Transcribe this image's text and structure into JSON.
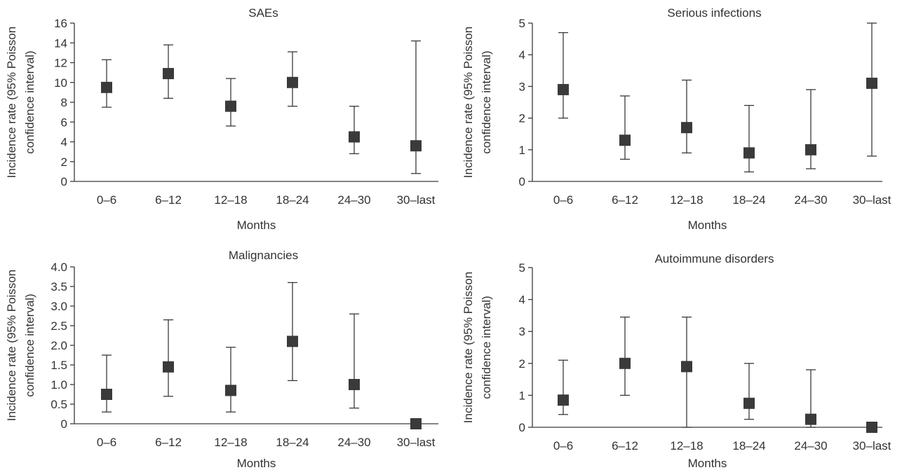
{
  "chart_data": [
    {
      "type": "scatter",
      "title": "SAEs",
      "xlabel": "Months",
      "ylabel_lines": [
        "Incidence rate (95% Poisson",
        "confidence interval)"
      ],
      "categories": [
        "0–6",
        "6–12",
        "12–18",
        "18–24",
        "24–30",
        "30–last"
      ],
      "values": [
        9.5,
        10.9,
        7.6,
        10.0,
        4.5,
        3.6
      ],
      "ci_low": [
        7.5,
        8.4,
        5.6,
        7.6,
        2.8,
        0.8
      ],
      "ci_high": [
        12.3,
        13.8,
        10.4,
        13.1,
        7.6,
        14.2
      ],
      "ylim": [
        0,
        16
      ],
      "yticks": [
        0,
        2,
        4,
        6,
        8,
        10,
        12,
        14,
        16
      ],
      "ytick_labels": [
        "0",
        "2",
        "4",
        "6",
        "8",
        "10",
        "12",
        "14",
        "16"
      ],
      "marker_color": "#3a3a3a"
    },
    {
      "type": "scatter",
      "title": "Serious infections",
      "xlabel": "Months",
      "ylabel_lines": [
        "Incidence rate (95% Poisson",
        "confidence interval)"
      ],
      "categories": [
        "0–6",
        "6–12",
        "12–18",
        "18–24",
        "24–30",
        "30–last"
      ],
      "values": [
        2.9,
        1.3,
        1.7,
        0.9,
        1.0,
        3.1
      ],
      "ci_low": [
        2.0,
        0.7,
        0.9,
        0.3,
        0.4,
        0.8
      ],
      "ci_high": [
        4.7,
        2.7,
        3.2,
        2.4,
        2.9,
        5.0
      ],
      "ylim": [
        0,
        5
      ],
      "yticks": [
        0,
        1,
        2,
        3,
        4,
        5
      ],
      "ytick_labels": [
        "0",
        "1",
        "2",
        "3",
        "4",
        "5"
      ],
      "marker_color": "#3a3a3a"
    },
    {
      "type": "scatter",
      "title": "Malignancies",
      "xlabel": "Months",
      "ylabel_lines": [
        "Incidence rate (95% Poisson",
        "confidence interval)"
      ],
      "categories": [
        "0–6",
        "6–12",
        "12–18",
        "18–24",
        "24–30",
        "30–last"
      ],
      "values": [
        0.75,
        1.45,
        0.85,
        2.1,
        1.0,
        0.0
      ],
      "ci_low": [
        0.3,
        0.7,
        0.3,
        1.1,
        0.4,
        0.0
      ],
      "ci_high": [
        1.75,
        2.65,
        1.95,
        3.6,
        2.8,
        0.0
      ],
      "ylim": [
        0,
        4
      ],
      "yticks": [
        0,
        0.5,
        1,
        1.5,
        2,
        2.5,
        3,
        3.5,
        4
      ],
      "ytick_labels": [
        "0",
        "0.5",
        "1.0",
        "1.5",
        "2.0",
        "2.5",
        "3.0",
        "3.5",
        "4.0"
      ],
      "marker_color": "#3a3a3a"
    },
    {
      "type": "scatter",
      "title": "Autoimmune disorders",
      "xlabel": "Months",
      "ylabel_lines": [
        "Incidence rate (95% Poisson",
        "confidence interval)"
      ],
      "categories": [
        "0–6",
        "6–12",
        "12–18",
        "18–24",
        "24–30",
        "30–last"
      ],
      "values": [
        0.85,
        2.0,
        1.9,
        0.75,
        0.25,
        0.0
      ],
      "ci_low": [
        0.4,
        1.0,
        0.0,
        0.25,
        0.0,
        0.0
      ],
      "ci_high": [
        2.1,
        3.45,
        3.45,
        2.0,
        1.8,
        0.0
      ],
      "ylim": [
        0,
        5
      ],
      "yticks": [
        0,
        1,
        2,
        3,
        4,
        5
      ],
      "ytick_labels": [
        "0",
        "1",
        "2",
        "3",
        "4",
        "5"
      ],
      "marker_color": "#3a3a3a"
    }
  ]
}
